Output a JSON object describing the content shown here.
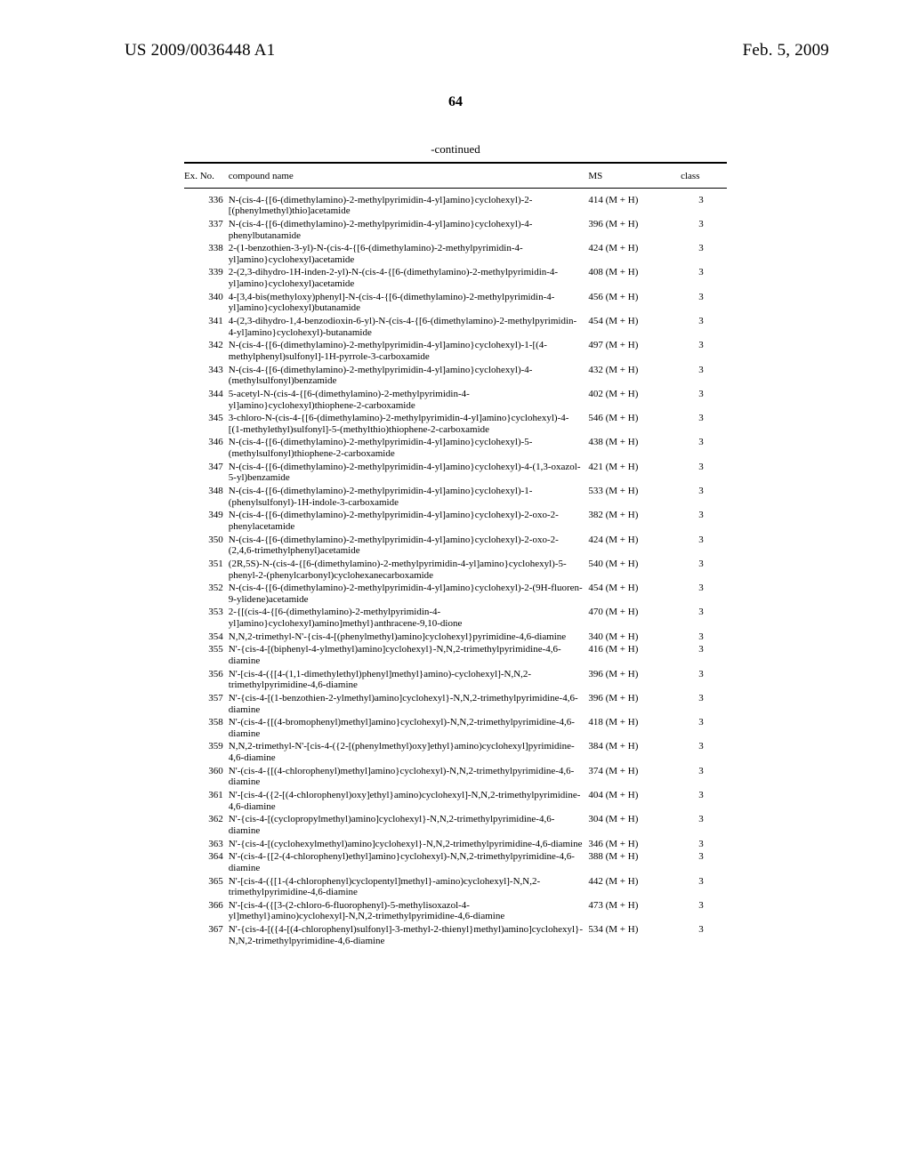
{
  "header": {
    "patnum": "US 2009/0036448 A1",
    "date": "Feb. 5, 2009"
  },
  "page_number": "64",
  "caption": "-continued",
  "columns": {
    "ex": "Ex. No.",
    "name": "compound name",
    "ms": "MS",
    "class": "class"
  },
  "rows": [
    {
      "ex": "336",
      "name": "N-(cis-4-{[6-(dimethylamino)-2-methylpyrimidin-4-yl]amino}cyclohexyl)-2-[(phenylmethyl)thio]acetamide",
      "ms": "414 (M + H)",
      "class": "3"
    },
    {
      "ex": "337",
      "name": "N-(cis-4-{[6-(dimethylamino)-2-methylpyrimidin-4-yl]amino}cyclohexyl)-4-phenylbutanamide",
      "ms": "396 (M + H)",
      "class": "3"
    },
    {
      "ex": "338",
      "name": "2-(1-benzothien-3-yl)-N-(cis-4-{[6-(dimethylamino)-2-methylpyrimidin-4-yl]amino}cyclohexyl)acetamide",
      "ms": "424 (M + H)",
      "class": "3"
    },
    {
      "ex": "339",
      "name": "2-(2,3-dihydro-1H-inden-2-yl)-N-(cis-4-{[6-(dimethylamino)-2-methylpyrimidin-4-yl]amino}cyclohexyl)acetamide",
      "ms": "408 (M + H)",
      "class": "3"
    },
    {
      "ex": "340",
      "name": "4-[3,4-bis(methyloxy)phenyl]-N-(cis-4-{[6-(dimethylamino)-2-methylpyrimidin-4-yl]amino}cyclohexyl)butanamide",
      "ms": "456 (M + H)",
      "class": "3"
    },
    {
      "ex": "341",
      "name": "4-(2,3-dihydro-1,4-benzodioxin-6-yl)-N-(cis-4-{[6-(dimethylamino)-2-methylpyrimidin-4-yl]amino}cyclohexyl)-butanamide",
      "ms": "454 (M + H)",
      "class": "3"
    },
    {
      "ex": "342",
      "name": "N-(cis-4-{[6-(dimethylamino)-2-methylpyrimidin-4-yl]amino}cyclohexyl)-1-[(4-methylphenyl)sulfonyl]-1H-pyrrole-3-carboxamide",
      "ms": "497 (M + H)",
      "class": "3"
    },
    {
      "ex": "343",
      "name": "N-(cis-4-{[6-(dimethylamino)-2-methylpyrimidin-4-yl]amino}cyclohexyl)-4-(methylsulfonyl)benzamide",
      "ms": "432 (M + H)",
      "class": "3"
    },
    {
      "ex": "344",
      "name": "5-acetyl-N-(cis-4-{[6-(dimethylamino)-2-methylpyrimidin-4-yl]amino}cyclohexyl)thiophene-2-carboxamide",
      "ms": "402 (M + H)",
      "class": "3"
    },
    {
      "ex": "345",
      "name": "3-chloro-N-(cis-4-{[6-(dimethylamino)-2-methylpyrimidin-4-yl]amino}cyclohexyl)-4-[(1-methylethyl)sulfonyl]-5-(methylthio)thiophene-2-carboxamide",
      "ms": "546 (M + H)",
      "class": "3"
    },
    {
      "ex": "346",
      "name": "N-(cis-4-{[6-(dimethylamino)-2-methylpyrimidin-4-yl]amino}cyclohexyl)-5-(methylsulfonyl)thiophene-2-carboxamide",
      "ms": "438 (M + H)",
      "class": "3"
    },
    {
      "ex": "347",
      "name": "N-(cis-4-{[6-(dimethylamino)-2-methylpyrimidin-4-yl]amino}cyclohexyl)-4-(1,3-oxazol-5-yl)benzamide",
      "ms": "421 (M + H)",
      "class": "3"
    },
    {
      "ex": "348",
      "name": "N-(cis-4-{[6-(dimethylamino)-2-methylpyrimidin-4-yl]amino}cyclohexyl)-1-(phenylsulfonyl)-1H-indole-3-carboxamide",
      "ms": "533 (M + H)",
      "class": "3"
    },
    {
      "ex": "349",
      "name": "N-(cis-4-{[6-(dimethylamino)-2-methylpyrimidin-4-yl]amino}cyclohexyl)-2-oxo-2-phenylacetamide",
      "ms": "382 (M + H)",
      "class": "3"
    },
    {
      "ex": "350",
      "name": "N-(cis-4-{[6-(dimethylamino)-2-methylpyrimidin-4-yl]amino}cyclohexyl)-2-oxo-2-(2,4,6-trimethylphenyl)acetamide",
      "ms": "424 (M + H)",
      "class": "3"
    },
    {
      "ex": "351",
      "name": "(2R,5S)-N-(cis-4-{[6-(dimethylamino)-2-methylpyrimidin-4-yl]amino}cyclohexyl)-5-phenyl-2-(phenylcarbonyl)cyclohexanecarboxamide",
      "ms": "540 (M + H)",
      "class": "3"
    },
    {
      "ex": "352",
      "name": "N-(cis-4-{[6-(dimethylamino)-2-methylpyrimidin-4-yl]amino}cyclohexyl)-2-(9H-fluoren-9-ylidene)acetamide",
      "ms": "454 (M + H)",
      "class": "3"
    },
    {
      "ex": "353",
      "name": "2-{[(cis-4-{[6-(dimethylamino)-2-methylpyrimidin-4-yl]amino}cyclohexyl)amino]methyl}anthracene-9,10-dione",
      "ms": "470 (M + H)",
      "class": "3"
    },
    {
      "ex": "354",
      "name": "N,N,2-trimethyl-N'-{cis-4-[(phenylmethyl)amino]cyclohexyl}pyrimidine-4,6-diamine",
      "ms": "340 (M + H)",
      "class": "3"
    },
    {
      "ex": "355",
      "name": "N'-{cis-4-[(biphenyl-4-ylmethyl)amino]cyclohexyl}-N,N,2-trimethylpyrimidine-4,6-diamine",
      "ms": "416 (M + H)",
      "class": "3"
    },
    {
      "ex": "356",
      "name": "N'-[cis-4-({[4-(1,1-dimethylethyl)phenyl]methyl}amino)-cyclohexyl]-N,N,2-trimethylpyrimidine-4,6-diamine",
      "ms": "396 (M + H)",
      "class": "3"
    },
    {
      "ex": "357",
      "name": "N'-{cis-4-[(1-benzothien-2-ylmethyl)amino]cyclohexyl}-N,N,2-trimethylpyrimidine-4,6-diamine",
      "ms": "396 (M + H)",
      "class": "3"
    },
    {
      "ex": "358",
      "name": "N'-(cis-4-{[(4-bromophenyl)methyl]amino}cyclohexyl)-N,N,2-trimethylpyrimidine-4,6-diamine",
      "ms": "418 (M + H)",
      "class": "3"
    },
    {
      "ex": "359",
      "name": "N,N,2-trimethyl-N'-[cis-4-({2-[(phenylmethyl)oxy]ethyl}amino)cyclohexyl]pyrimidine-4,6-diamine",
      "ms": "384 (M + H)",
      "class": "3"
    },
    {
      "ex": "360",
      "name": "N'-(cis-4-{[(4-chlorophenyl)methyl]amino}cyclohexyl)-N,N,2-trimethylpyrimidine-4,6-diamine",
      "ms": "374 (M + H)",
      "class": "3"
    },
    {
      "ex": "361",
      "name": "N'-[cis-4-({2-[(4-chlorophenyl)oxy]ethyl}amino)cyclohexyl]-N,N,2-trimethylpyrimidine-4,6-diamine",
      "ms": "404 (M + H)",
      "class": "3"
    },
    {
      "ex": "362",
      "name": "N'-{cis-4-[(cyclopropylmethyl)amino]cyclohexyl}-N,N,2-trimethylpyrimidine-4,6-diamine",
      "ms": "304 (M + H)",
      "class": "3"
    },
    {
      "ex": "363",
      "name": "N'-{cis-4-[(cyclohexylmethyl)amino]cyclohexyl}-N,N,2-trimethylpyrimidine-4,6-diamine",
      "ms": "346 (M + H)",
      "class": "3"
    },
    {
      "ex": "364",
      "name": "N'-(cis-4-{[2-(4-chlorophenyl)ethyl]amino}cyclohexyl)-N,N,2-trimethylpyrimidine-4,6-diamine",
      "ms": "388 (M + H)",
      "class": "3"
    },
    {
      "ex": "365",
      "name": "N'-[cis-4-({[1-(4-chlorophenyl)cyclopentyl]methyl}-amino)cyclohexyl]-N,N,2-trimethylpyrimidine-4,6-diamine",
      "ms": "442 (M + H)",
      "class": "3"
    },
    {
      "ex": "366",
      "name": "N'-[cis-4-({[3-(2-chloro-6-fluorophenyl)-5-methylisoxazol-4-yl]methyl}amino)cyclohexyl]-N,N,2-trimethylpyrimidine-4,6-diamine",
      "ms": "473 (M + H)",
      "class": "3"
    },
    {
      "ex": "367",
      "name": "N'-{cis-4-[({4-[(4-chlorophenyl)sulfonyl]-3-methyl-2-thienyl}methyl)amino]cyclohexyl}-N,N,2-trimethylpyrimidine-4,6-diamine",
      "ms": "534 (M + H)",
      "class": "3"
    }
  ]
}
